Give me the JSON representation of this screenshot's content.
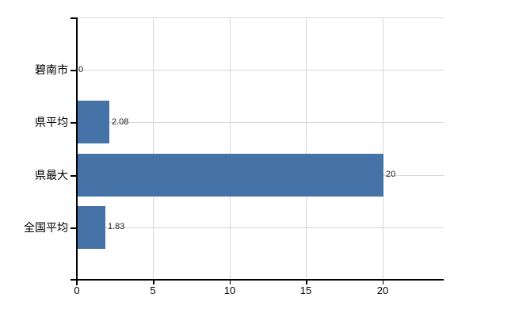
{
  "chart_data": {
    "type": "bar",
    "orientation": "horizontal",
    "title": "",
    "categories": [
      "碧南市",
      "県平均",
      "県最大",
      "全国平均"
    ],
    "values": [
      0,
      2.08,
      20,
      1.83
    ],
    "value_labels": [
      "0",
      "2.08",
      "20",
      "1.83"
    ],
    "xlim": [
      0,
      24
    ],
    "x_ticks": [
      0,
      5,
      10,
      15,
      20
    ],
    "x_tick_labels": [
      "0",
      "5",
      "10",
      "15",
      "20"
    ],
    "grid": true,
    "legend_position": "none",
    "colors": {
      "bar": "#4572a7",
      "gridline": "#d8d8d8",
      "axis": "#000000",
      "category_label": "#000000",
      "value_label": "#222222",
      "tick_label": "#000000",
      "background": "#ffffff"
    }
  }
}
